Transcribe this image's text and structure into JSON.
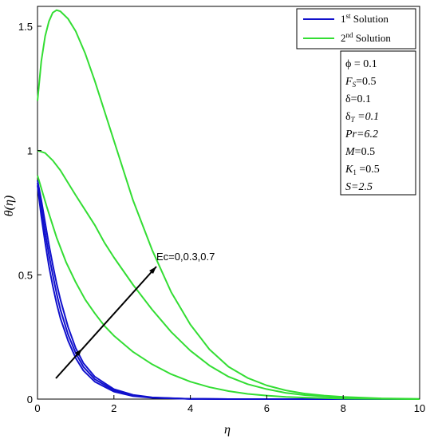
{
  "chart_data": {
    "type": "line",
    "xlabel": "η",
    "ylabel": "θ(η)",
    "xlim": [
      0,
      10
    ],
    "ylim": [
      0,
      1.58
    ],
    "x_ticks": [
      "0",
      "2",
      "4",
      "6",
      "8",
      "10"
    ],
    "x_tick_values": [
      0,
      2,
      4,
      6,
      8,
      10
    ],
    "y_ticks": [
      "0",
      "0.5",
      "1",
      "1.5"
    ],
    "y_tick_values": [
      0,
      0.5,
      1,
      1.5
    ],
    "grid": false,
    "legend_position": "top-right",
    "legend": [
      {
        "label": "1",
        "sup": "st",
        "suffix": " Solution",
        "color": "#1010cc"
      },
      {
        "label": "2",
        "sup": "nd",
        "suffix": " Solution",
        "color": "#33dd33"
      }
    ],
    "annotation": "Ec=0,0.3,0.7",
    "parameters": [
      "ϕ = 0.1",
      "F_S=0.5",
      "δ=0.1",
      "δ_T =0.1",
      "Pr=6.2",
      "M=0.5",
      "K_1 =0.5",
      "S=2.5"
    ],
    "series": [
      {
        "name": "1st Solution",
        "color": "#1010cc",
        "x": [
          0,
          0.1,
          0.2,
          0.3,
          0.4,
          0.5,
          0.6,
          0.8,
          1.0,
          1.2,
          1.5,
          2.0,
          2.5,
          3.0,
          4.0,
          5.0,
          10.0
        ],
        "y": [
          0.86,
          0.735,
          0.63,
          0.535,
          0.455,
          0.385,
          0.325,
          0.235,
          0.165,
          0.115,
          0.07,
          0.03,
          0.012,
          0.005,
          0.001,
          0.0,
          0.0
        ]
      },
      {
        "name": "1st Solution",
        "color": "#1010cc",
        "x": [
          0,
          0.1,
          0.2,
          0.3,
          0.4,
          0.5,
          0.6,
          0.8,
          1.0,
          1.2,
          1.5,
          2.0,
          2.5,
          3.0,
          4.0,
          5.0,
          10.0
        ],
        "y": [
          0.87,
          0.77,
          0.67,
          0.58,
          0.5,
          0.425,
          0.36,
          0.26,
          0.185,
          0.13,
          0.08,
          0.035,
          0.014,
          0.006,
          0.001,
          0.0,
          0.0
        ]
      },
      {
        "name": "1st Solution",
        "color": "#1010cc",
        "x": [
          0,
          0.1,
          0.2,
          0.3,
          0.4,
          0.5,
          0.6,
          0.8,
          1.0,
          1.2,
          1.5,
          2.0,
          2.5,
          3.0,
          4.0,
          5.0,
          10.0
        ],
        "y": [
          0.88,
          0.8,
          0.71,
          0.62,
          0.54,
          0.465,
          0.4,
          0.29,
          0.205,
          0.145,
          0.09,
          0.04,
          0.017,
          0.007,
          0.001,
          0.0,
          0.0
        ]
      },
      {
        "name": "2nd Solution",
        "color": "#33dd33",
        "x": [
          0,
          0.25,
          0.5,
          0.75,
          1.0,
          1.25,
          1.5,
          1.75,
          2.0,
          2.5,
          3.0,
          3.5,
          4.0,
          4.5,
          5.0,
          5.5,
          6.0,
          6.5,
          7.0,
          8.0,
          9.0,
          10.0
        ],
        "y": [
          0.9,
          0.77,
          0.65,
          0.55,
          0.47,
          0.4,
          0.345,
          0.295,
          0.255,
          0.19,
          0.14,
          0.1,
          0.07,
          0.048,
          0.032,
          0.021,
          0.014,
          0.009,
          0.006,
          0.002,
          0.001,
          0.0
        ]
      },
      {
        "name": "2nd Solution",
        "color": "#33dd33",
        "x": [
          0,
          0.2,
          0.4,
          0.6,
          0.8,
          1.0,
          1.25,
          1.5,
          1.75,
          2.0,
          2.5,
          3.0,
          3.5,
          4.0,
          4.5,
          5.0,
          5.5,
          6.0,
          6.5,
          7.0,
          8.0,
          9.0,
          10.0
        ],
        "y": [
          1.0,
          0.99,
          0.96,
          0.92,
          0.87,
          0.82,
          0.76,
          0.7,
          0.63,
          0.57,
          0.46,
          0.36,
          0.27,
          0.195,
          0.135,
          0.09,
          0.06,
          0.04,
          0.025,
          0.016,
          0.006,
          0.002,
          0.0
        ]
      },
      {
        "name": "2nd Solution",
        "color": "#33dd33",
        "x": [
          0,
          0.1,
          0.2,
          0.3,
          0.4,
          0.5,
          0.6,
          0.8,
          1.0,
          1.25,
          1.5,
          1.75,
          2.0,
          2.5,
          3.0,
          3.5,
          4.0,
          4.5,
          5.0,
          5.5,
          6.0,
          6.5,
          7.0,
          7.5,
          8.0,
          9.0,
          10.0
        ],
        "y": [
          1.2,
          1.36,
          1.46,
          1.52,
          1.555,
          1.565,
          1.56,
          1.53,
          1.48,
          1.39,
          1.28,
          1.16,
          1.04,
          0.8,
          0.6,
          0.43,
          0.3,
          0.2,
          0.13,
          0.085,
          0.055,
          0.035,
          0.022,
          0.014,
          0.009,
          0.003,
          0.001
        ]
      }
    ]
  }
}
